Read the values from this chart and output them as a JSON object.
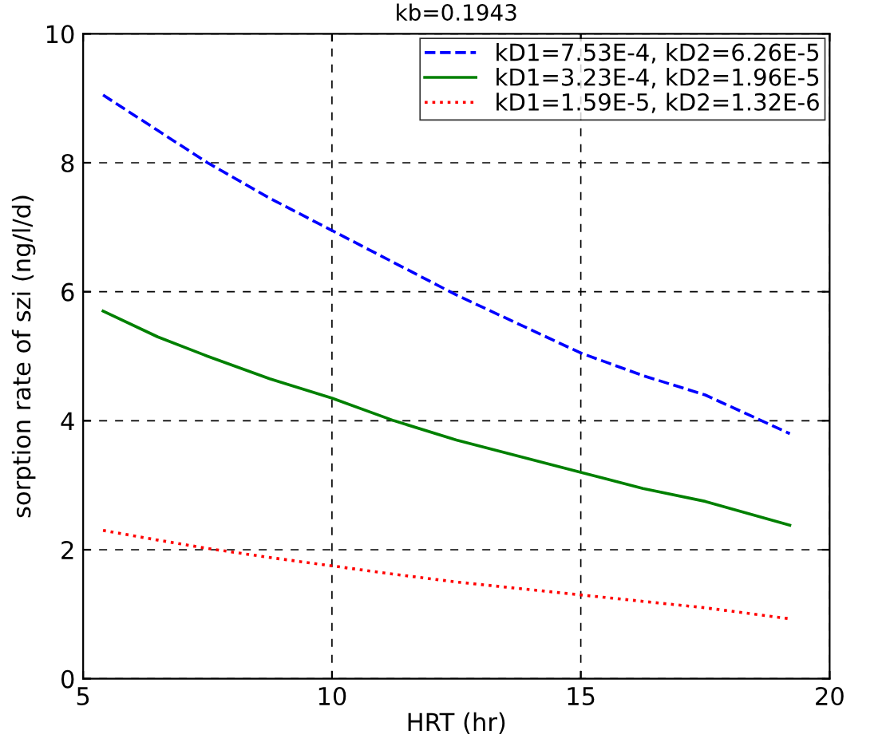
{
  "chart_data": {
    "type": "line",
    "title": "kb=0.1943",
    "xlabel": "HRT (hr)",
    "ylabel": "sorption rate of szi (ng/l/d)",
    "x": [
      5.4,
      6.5,
      7.5,
      8.75,
      10,
      11.25,
      12.5,
      13.75,
      15,
      16.25,
      17.5,
      19.2
    ],
    "series": [
      {
        "name": "kD1=7.53E-4, kD2=6.26E-5",
        "color": "#0000ff",
        "line_style": "dashed",
        "values": [
          9.05,
          8.5,
          8.0,
          7.45,
          6.95,
          6.45,
          5.95,
          5.5,
          5.05,
          4.7,
          4.4,
          3.8
        ]
      },
      {
        "name": "kD1=3.23E-4, kD2=1.96E-5",
        "color": "#008000",
        "line_style": "solid",
        "values": [
          5.7,
          5.3,
          5.0,
          4.65,
          4.35,
          4.0,
          3.7,
          3.45,
          3.2,
          2.95,
          2.75,
          2.38
        ]
      },
      {
        "name": "kD1=1.59E-5, kD2=1.32E-6",
        "color": "#ff0000",
        "line_style": "dotted",
        "values": [
          2.3,
          2.15,
          2.02,
          1.88,
          1.75,
          1.62,
          1.5,
          1.4,
          1.3,
          1.2,
          1.1,
          0.93
        ]
      }
    ],
    "xlim": [
      5,
      20
    ],
    "xticks": [
      5,
      10,
      15,
      20
    ],
    "ylim": [
      0,
      10
    ],
    "yticks": [
      0,
      2,
      4,
      6,
      8,
      10
    ],
    "grid": true,
    "legend": "top right"
  }
}
